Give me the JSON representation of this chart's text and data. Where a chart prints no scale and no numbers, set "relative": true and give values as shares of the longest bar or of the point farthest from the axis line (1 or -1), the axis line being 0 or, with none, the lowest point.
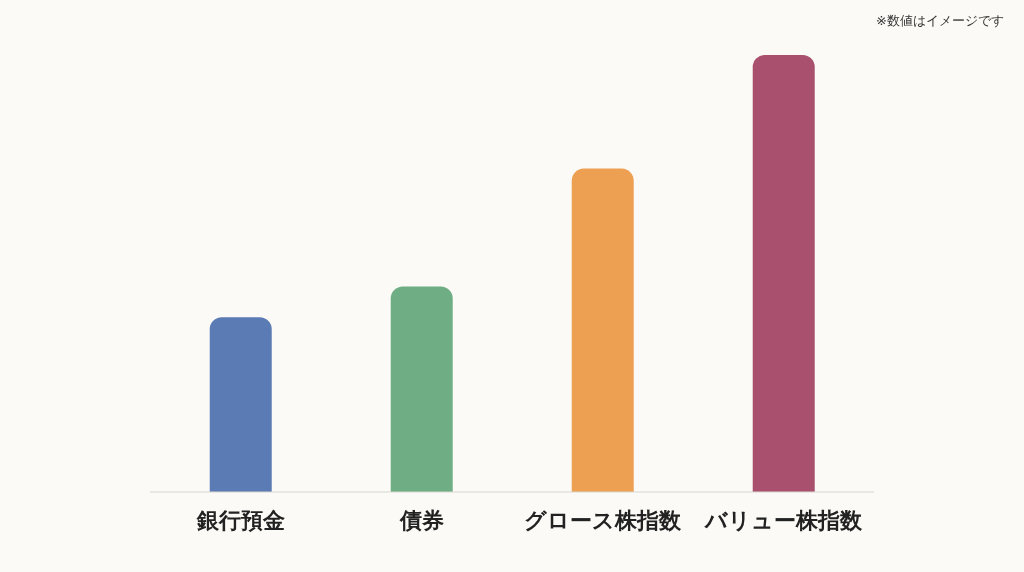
{
  "chart_data": {
    "type": "bar",
    "relative": true,
    "categories": [
      "銀行預金",
      "債券",
      "グロース株指数",
      "バリュー株指数"
    ],
    "values": [
      0.4,
      0.47,
      0.74,
      1
    ],
    "colors": [
      "#5b7bb5",
      "#6fae84",
      "#eea052",
      "#a8506e"
    ],
    "annotations": [
      "※数値はイメージです"
    ],
    "grid": false,
    "legend": false
  }
}
